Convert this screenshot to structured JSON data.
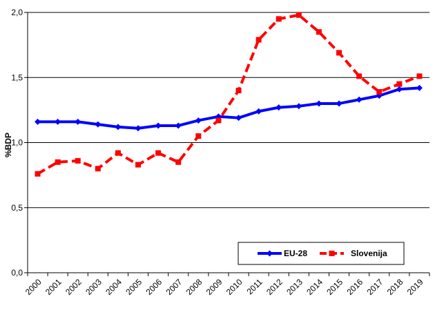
{
  "chart_data": {
    "type": "line",
    "x": [
      "2000",
      "2001",
      "2002",
      "2003",
      "2004",
      "2005",
      "2006",
      "2007",
      "2008",
      "2009",
      "2010",
      "2011",
      "2012",
      "2013",
      "2014",
      "2015",
      "2016",
      "2017",
      "2018",
      "2019"
    ],
    "series": [
      {
        "name": "EU-28",
        "color": "#0000ff",
        "style": "solid",
        "marker": "diamond",
        "values": [
          1.16,
          1.16,
          1.16,
          1.14,
          1.12,
          1.11,
          1.13,
          1.13,
          1.17,
          1.2,
          1.19,
          1.24,
          1.27,
          1.28,
          1.3,
          1.3,
          1.33,
          1.36,
          1.41,
          1.42
        ]
      },
      {
        "name": "Slovenija",
        "color": "#ff0000",
        "style": "dashed",
        "marker": "square",
        "values": [
          0.76,
          0.85,
          0.86,
          0.8,
          0.92,
          0.83,
          0.92,
          0.85,
          1.05,
          1.17,
          1.4,
          1.79,
          1.95,
          1.98,
          1.85,
          1.69,
          1.51,
          1.39,
          1.45,
          1.51
        ]
      }
    ],
    "ylabel": "%BDP",
    "ylim": [
      0,
      2.0
    ],
    "yticks": [
      "0,0",
      "0,5",
      "1,0",
      "1,5",
      "2,0"
    ],
    "grid": true,
    "legend_position": "bottom-right"
  }
}
